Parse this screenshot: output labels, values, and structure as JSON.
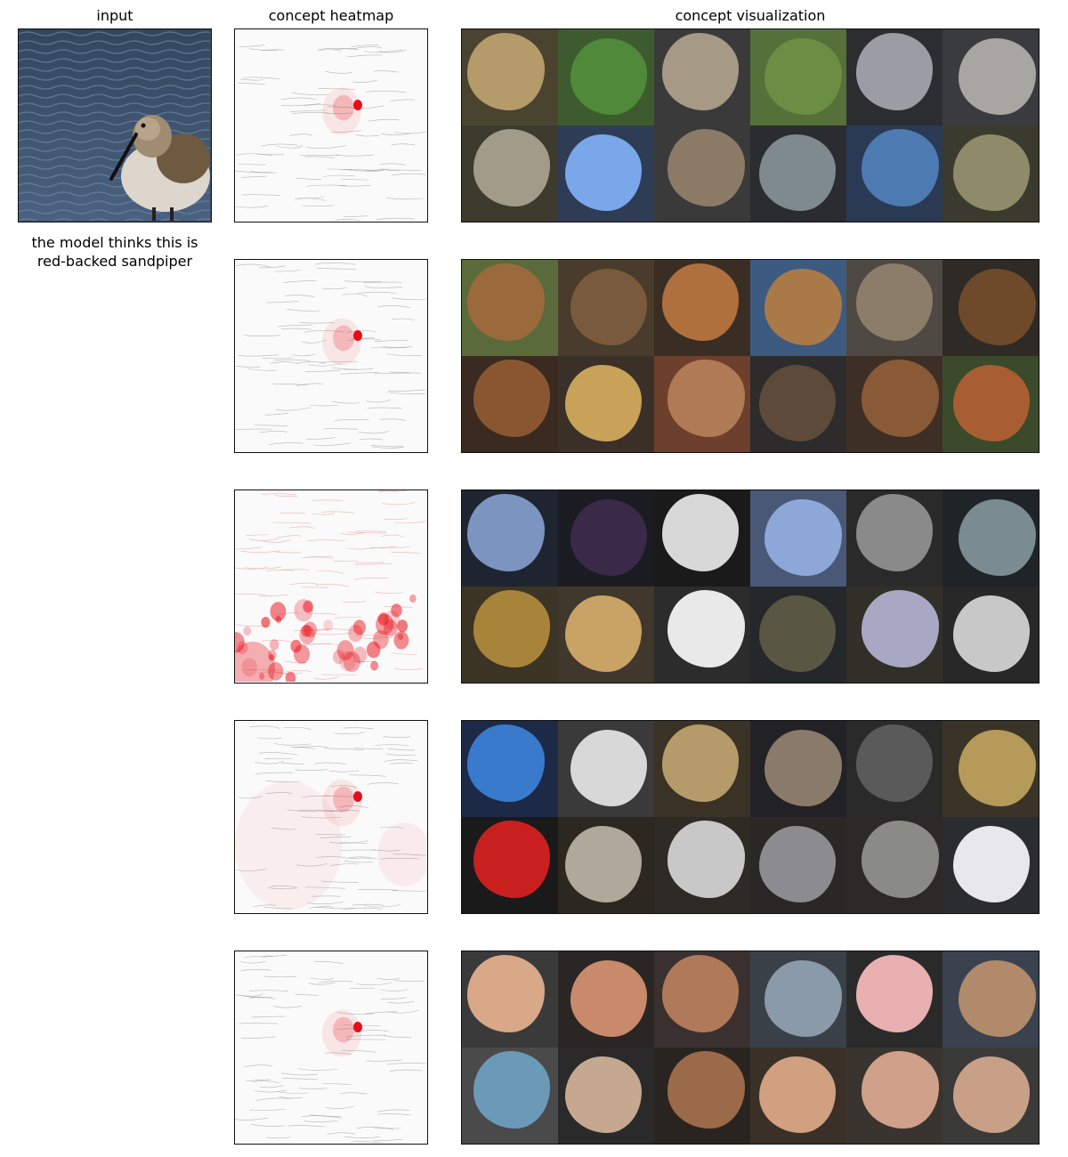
{
  "titles": {
    "input": "input",
    "heatmap": "concept heatmap",
    "visualization": "concept visualization"
  },
  "prediction": {
    "line1": "the model thinks this is",
    "line2": "red-backed sandpiper"
  },
  "colors": {
    "heat": "#e8000b",
    "frame": "#111111"
  },
  "concepts": [
    {
      "id": "bird-parts",
      "heat_mode": "center",
      "tile_bg": [
        "#4a4330",
        "#3e5b2f",
        "#3a3a3a",
        "#56703a",
        "#2b2d30",
        "#3a3b3e",
        "#3d3a2e",
        "#2f3c55",
        "#3a3a3a",
        "#2a2c30",
        "#2a3a55",
        "#3a3a2e"
      ],
      "tile_fg": [
        "#b59a6a",
        "#4f8a3a",
        "#a69a86",
        "#6b8d44",
        "#9a9da3",
        "#a7a6a3",
        "#a39b89",
        "#7aa7ea",
        "#8b7a66",
        "#7f8a8f",
        "#4d7ab0",
        "#8f8b6a"
      ]
    },
    {
      "id": "dog-faces",
      "heat_mode": "center",
      "tile_bg": [
        "#5b6a3a",
        "#4a3c2c",
        "#3a2e24",
        "#3d5a80",
        "#4e4942",
        "#2e2a26",
        "#3a2a20",
        "#3a3028",
        "#6d3f2d",
        "#2d2b2b",
        "#3e2f26",
        "#3b4a2a"
      ],
      "tile_fg": [
        "#9a6a3c",
        "#7a5a3c",
        "#b0703e",
        "#a97a48",
        "#8c7c6a",
        "#6e4a2a",
        "#8a5632",
        "#c9a25a",
        "#b07a56",
        "#5e4a3a",
        "#8a5a36",
        "#a85e30"
      ]
    },
    {
      "id": "water-texture",
      "heat_mode": "bottom",
      "tile_bg": [
        "#1f2530",
        "#1a1c22",
        "#1a1a1a",
        "#4a5878",
        "#2a2a2a",
        "#1e2428",
        "#3c3424",
        "#40382c",
        "#2c2c2c",
        "#24282a",
        "#303028",
        "#282828"
      ],
      "tile_fg": [
        "#7c94c0",
        "#3a2a48",
        "#d8d8d8",
        "#8da8d8",
        "#8a8a8a",
        "#7a8c92",
        "#a8843a",
        "#c9a266",
        "#e9e9e9",
        "#5a5644",
        "#a8a8c4",
        "#c8c8c8"
      ]
    },
    {
      "id": "stripes",
      "heat_mode": "mixed",
      "tile_bg": [
        "#1c2a48",
        "#3a3a3a",
        "#3a3224",
        "#222226",
        "#2a2a2a",
        "#3a3428",
        "#1a1a1a",
        "#2c2820",
        "#2e2a26",
        "#2a2826",
        "#2c2a28",
        "#2a2c30"
      ],
      "tile_fg": [
        "#3a7acc",
        "#d8d8d8",
        "#b59a6a",
        "#8a7a6a",
        "#5a5a5a",
        "#b59a5a",
        "#c8201e",
        "#b0a89a",
        "#c8c8c8",
        "#8c8c90",
        "#8a8a86",
        "#e8e8ea"
      ]
    },
    {
      "id": "people",
      "heat_mode": "center",
      "tile_bg": [
        "#3a3a3a",
        "#2a2624",
        "#3a3030",
        "#3a4048",
        "#2a2a2a",
        "#3a4250",
        "#4a4a4a",
        "#2a2a2a",
        "#2a2420",
        "#3a3028",
        "#3a3430",
        "#3a3a38"
      ],
      "tile_fg": [
        "#d8a888",
        "#c88a6a",
        "#b07a5a",
        "#8a9aa8",
        "#e8b0b0",
        "#b08a6a",
        "#6a9ab8",
        "#c4a890",
        "#9a6a4a",
        "#d0a080",
        "#d0a08a",
        "#c8a088"
      ]
    }
  ]
}
